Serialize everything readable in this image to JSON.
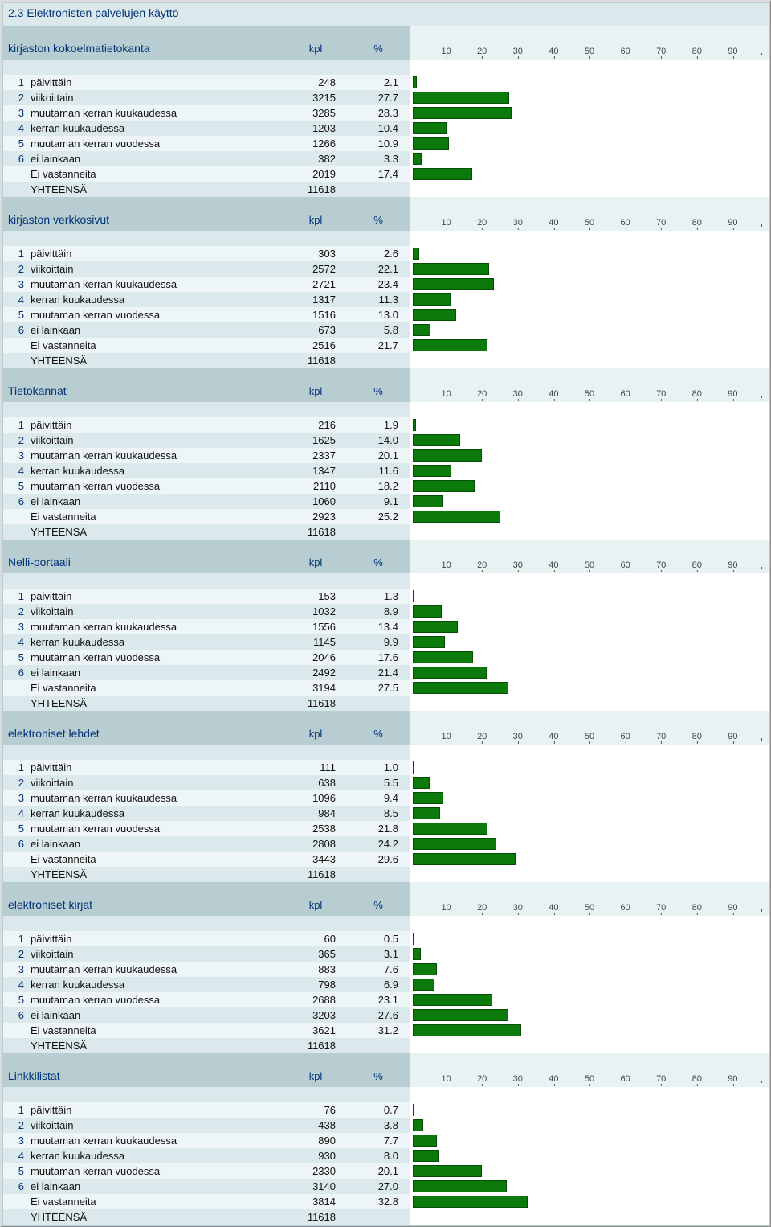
{
  "section_title": "2.3 Elektronisten palvelujen käyttö",
  "col_headers": {
    "kpl": "kpl",
    "pct": "%"
  },
  "axis": {
    "min": 0,
    "max": 100,
    "ticks": [
      10,
      20,
      30,
      40,
      50,
      60,
      70,
      80,
      90
    ]
  },
  "bar_color": "#0b7a0b",
  "bar_border": "#064d06",
  "colors": {
    "panel_bg": "#b8cdd2",
    "row_bg": "#eef5f6",
    "row_alt_bg": "#dce9ec",
    "chart_bg": "#ffffff",
    "heading_color": "#003377"
  },
  "common_rows": {
    "labels": [
      "päivittäin",
      "viikoittain",
      "muutaman kerran kuukaudessa",
      "kerran kuukaudessa",
      "muutaman kerran vuodessa",
      "ei lainkaan"
    ],
    "no_answer_label": "Ei vastanneita",
    "total_label": "YHTEENSÄ"
  },
  "questions": [
    {
      "title": "kirjaston kokoelmatietokanta",
      "rows": [
        {
          "n": "1",
          "kpl": 248,
          "pct": 2.1
        },
        {
          "n": "2",
          "kpl": 3215,
          "pct": 27.7
        },
        {
          "n": "3",
          "kpl": 3285,
          "pct": 28.3
        },
        {
          "n": "4",
          "kpl": 1203,
          "pct": 10.4
        },
        {
          "n": "5",
          "kpl": 1266,
          "pct": 10.9
        },
        {
          "n": "6",
          "kpl": 382,
          "pct": 3.3
        }
      ],
      "no_answer": {
        "kpl": 2019,
        "pct": 17.4
      },
      "total": 11618
    },
    {
      "title": "kirjaston verkkosivut",
      "rows": [
        {
          "n": "1",
          "kpl": 303,
          "pct": 2.6
        },
        {
          "n": "2",
          "kpl": 2572,
          "pct": 22.1
        },
        {
          "n": "3",
          "kpl": 2721,
          "pct": 23.4
        },
        {
          "n": "4",
          "kpl": 1317,
          "pct": 11.3
        },
        {
          "n": "5",
          "kpl": 1516,
          "pct": 13.0
        },
        {
          "n": "6",
          "kpl": 673,
          "pct": 5.8
        }
      ],
      "no_answer": {
        "kpl": 2516,
        "pct": 21.7
      },
      "total": 11618
    },
    {
      "title": "Tietokannat",
      "rows": [
        {
          "n": "1",
          "kpl": 216,
          "pct": 1.9
        },
        {
          "n": "2",
          "kpl": 1625,
          "pct": 14.0
        },
        {
          "n": "3",
          "kpl": 2337,
          "pct": 20.1
        },
        {
          "n": "4",
          "kpl": 1347,
          "pct": 11.6
        },
        {
          "n": "5",
          "kpl": 2110,
          "pct": 18.2
        },
        {
          "n": "6",
          "kpl": 1060,
          "pct": 9.1
        }
      ],
      "no_answer": {
        "kpl": 2923,
        "pct": 25.2
      },
      "total": 11618
    },
    {
      "title": "Nelli-portaali",
      "rows": [
        {
          "n": "1",
          "kpl": 153,
          "pct": 1.3
        },
        {
          "n": "2",
          "kpl": 1032,
          "pct": 8.9
        },
        {
          "n": "3",
          "kpl": 1556,
          "pct": 13.4
        },
        {
          "n": "4",
          "kpl": 1145,
          "pct": 9.9
        },
        {
          "n": "5",
          "kpl": 2046,
          "pct": 17.6
        },
        {
          "n": "6",
          "kpl": 2492,
          "pct": 21.4
        }
      ],
      "no_answer": {
        "kpl": 3194,
        "pct": 27.5
      },
      "total": 11618
    },
    {
      "title": "elektroniset lehdet",
      "rows": [
        {
          "n": "1",
          "kpl": 111,
          "pct": 1.0
        },
        {
          "n": "2",
          "kpl": 638,
          "pct": 5.5
        },
        {
          "n": "3",
          "kpl": 1096,
          "pct": 9.4
        },
        {
          "n": "4",
          "kpl": 984,
          "pct": 8.5
        },
        {
          "n": "5",
          "kpl": 2538,
          "pct": 21.8
        },
        {
          "n": "6",
          "kpl": 2808,
          "pct": 24.2
        }
      ],
      "no_answer": {
        "kpl": 3443,
        "pct": 29.6
      },
      "total": 11618
    },
    {
      "title": "elektroniset kirjat",
      "rows": [
        {
          "n": "1",
          "kpl": 60,
          "pct": 0.5
        },
        {
          "n": "2",
          "kpl": 365,
          "pct": 3.1
        },
        {
          "n": "3",
          "kpl": 883,
          "pct": 7.6
        },
        {
          "n": "4",
          "kpl": 798,
          "pct": 6.9
        },
        {
          "n": "5",
          "kpl": 2688,
          "pct": 23.1
        },
        {
          "n": "6",
          "kpl": 3203,
          "pct": 27.6
        }
      ],
      "no_answer": {
        "kpl": 3621,
        "pct": 31.2
      },
      "total": 11618
    },
    {
      "title": "Linkkilistat",
      "rows": [
        {
          "n": "1",
          "kpl": 76,
          "pct": 0.7
        },
        {
          "n": "2",
          "kpl": 438,
          "pct": 3.8
        },
        {
          "n": "3",
          "kpl": 890,
          "pct": 7.7
        },
        {
          "n": "4",
          "kpl": 930,
          "pct": 8.0
        },
        {
          "n": "5",
          "kpl": 2330,
          "pct": 20.1
        },
        {
          "n": "6",
          "kpl": 3140,
          "pct": 27.0
        }
      ],
      "no_answer": {
        "kpl": 3814,
        "pct": 32.8
      },
      "total": 11618
    }
  ]
}
